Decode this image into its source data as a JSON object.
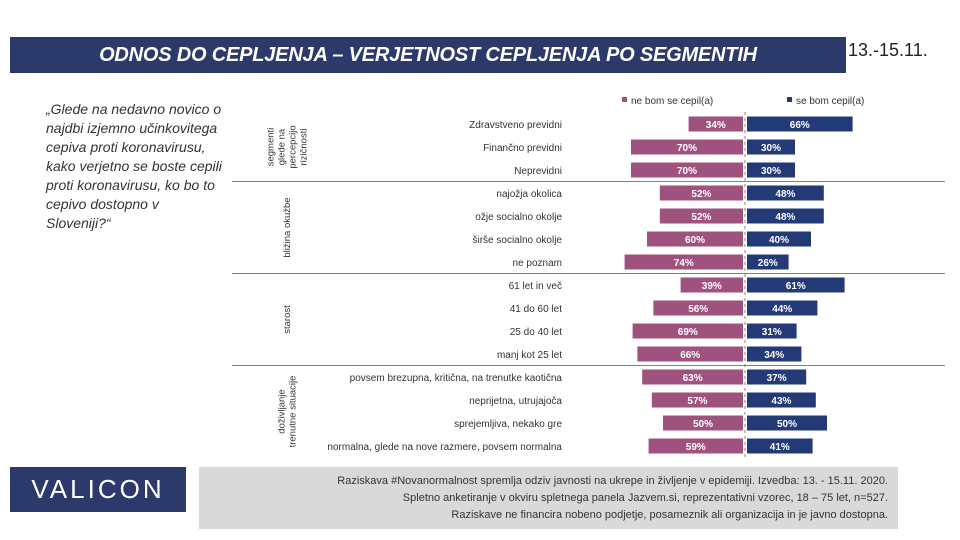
{
  "header": {
    "title": "ODNOS DO CEPLJENJA – VERJETNOST CEPLJENJA PO SEGMENTIH",
    "date": "13.-15.11."
  },
  "question": "„Glede na nedavno novico o najdbi izjemno učinkovitega cepiva proti koronavirusu, kako verjetno se boste cepili proti koronavirusu, ko bo to cepivo dostopno v Sloveniji?“",
  "logo": "VALICON",
  "footer": {
    "line1": "Raziskava #Novanormalnost spremlja odziv javnosti na ukrepe in življenje v epidemiji. Izvedba: 13. - 15.11. 2020.",
    "line2": "Spletno anketiranje v okviru spletnega panela Jazvem.si, reprezentativni vzorec, 18 – 75 let, n=527.",
    "line3": "Raziskave ne financira nobeno podjetje, posameznik ali organizacija in je javno dostopna."
  },
  "colors": {
    "navy": "#2b3a6b",
    "purple": "#a0527e",
    "blue": "#233a76"
  },
  "chart_data": {
    "type": "bar",
    "orientation": "horizontal-diverging",
    "legend_position": "top",
    "series": [
      {
        "name": "ne bom se cepil(a)",
        "color": "#a0527e"
      },
      {
        "name": "se bom cepil(a)",
        "color": "#233a76"
      }
    ],
    "groups": [
      {
        "name": "segmenti glede na percepcijo rizičnosti",
        "name_lines": [
          "segmenti",
          "glede na",
          "percepcijo",
          "rizičnosti"
        ],
        "rows": [
          {
            "label": "Zdravstveno previdni",
            "no": 34,
            "yes": 66
          },
          {
            "label": "Finančno previdni",
            "no": 70,
            "yes": 30
          },
          {
            "label": "Neprevidni",
            "no": 70,
            "yes": 30
          }
        ]
      },
      {
        "name": "bližina okužbe",
        "name_lines": [
          "bližina okužbe"
        ],
        "rows": [
          {
            "label": "najožja okolica",
            "no": 52,
            "yes": 48
          },
          {
            "label": "ožje socialno okolje",
            "no": 52,
            "yes": 48
          },
          {
            "label": "širše socialno okolje",
            "no": 60,
            "yes": 40
          },
          {
            "label": "ne poznam",
            "no": 74,
            "yes": 26
          }
        ]
      },
      {
        "name": "starost",
        "name_lines": [
          "starost"
        ],
        "rows": [
          {
            "label": "61 let in več",
            "no": 39,
            "yes": 61
          },
          {
            "label": "41 do 60 let",
            "no": 56,
            "yes": 44
          },
          {
            "label": "25 do 40 let",
            "no": 69,
            "yes": 31
          },
          {
            "label": "manj kot 25 let",
            "no": 66,
            "yes": 34
          }
        ]
      },
      {
        "name": "doživljanje trenutne situacije",
        "name_lines": [
          "doživljanje",
          "trenutne situacije"
        ],
        "rows": [
          {
            "label": "povsem brezupna, kritična, na trenutke kaotična",
            "no": 63,
            "yes": 37
          },
          {
            "label": "neprijetna, utrujajoča",
            "no": 57,
            "yes": 43
          },
          {
            "label": "sprejemljiva, nekako gre",
            "no": 50,
            "yes": 50
          },
          {
            "label": "normalna, glede na nove razmere, povsem normalna",
            "no": 59,
            "yes": 41
          }
        ]
      }
    ]
  }
}
